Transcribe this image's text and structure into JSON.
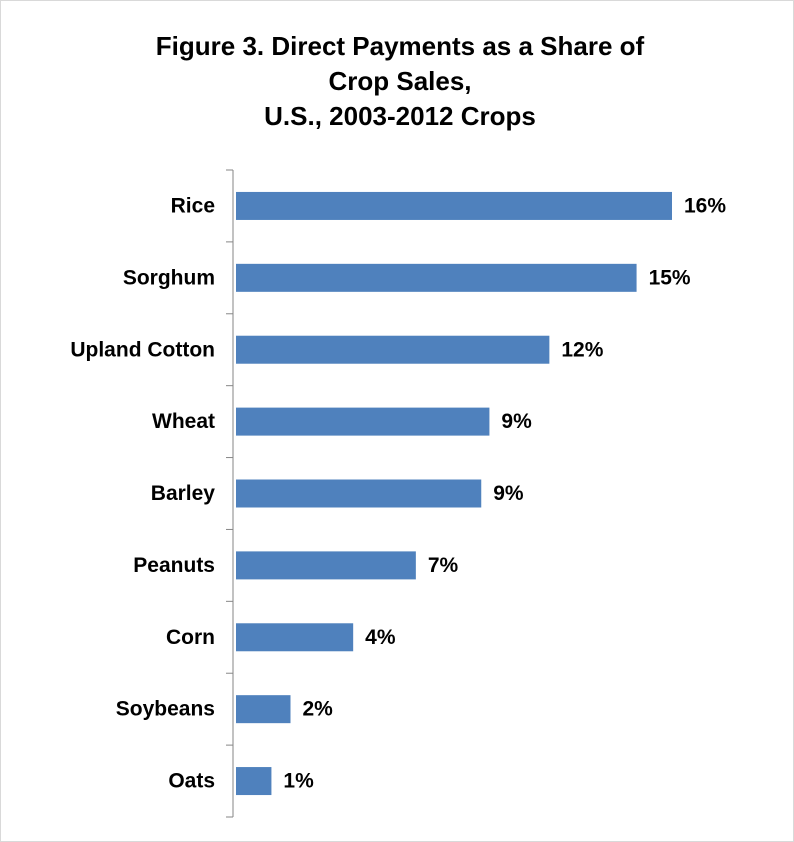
{
  "chart_data": {
    "type": "bar",
    "orientation": "horizontal",
    "title": [
      "Figure 3.  Direct Payments as a Share of",
      "Crop Sales,",
      "U.S., 2003-2012 Crops"
    ],
    "categories": [
      "Rice",
      "Sorghum",
      "Upland Cotton",
      "Wheat",
      "Barley",
      "Peanuts",
      "Corn",
      "Soybeans",
      "Oats"
    ],
    "values": [
      16,
      14.7,
      11.5,
      9.3,
      9.0,
      6.6,
      4.3,
      2.0,
      1.3
    ],
    "value_labels": [
      "16%",
      "15%",
      "12%",
      "9%",
      "9%",
      "7%",
      "4%",
      "2%",
      "1%"
    ],
    "color": "#4f81bd",
    "xlim": [
      0,
      20
    ]
  }
}
